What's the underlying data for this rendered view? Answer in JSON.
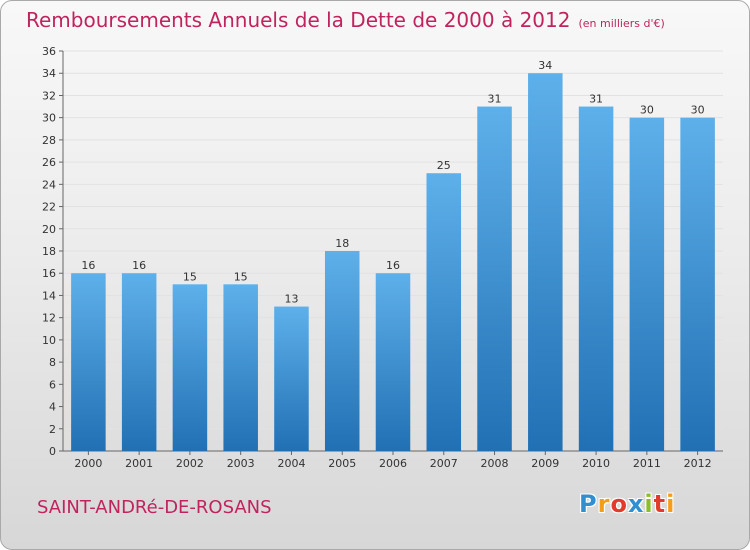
{
  "title": "Remboursements Annuels de la Dette de 2000 à 2012",
  "unit_note": "(en milliers d'€)",
  "commune": "SAINT-ANDRé-DE-ROSANS",
  "logo": {
    "letters": [
      "P",
      "r",
      "o",
      "x",
      "i",
      "t",
      "i"
    ],
    "colors": [
      "#2f8fd1",
      "#f59c1a",
      "#e23b2c",
      "#2f8fd1",
      "#8cbd2b",
      "#e23b2c",
      "#f59c1a"
    ]
  },
  "colors": {
    "bar_top": "#5eb0ea",
    "bar_bottom": "#2170b4",
    "title": "#c0245e"
  },
  "chart_data": {
    "type": "bar",
    "title": "Remboursements Annuels de la Dette de 2000 à 2012",
    "xlabel": "",
    "ylabel": "",
    "categories": [
      "2000",
      "2001",
      "2002",
      "2003",
      "2004",
      "2005",
      "2006",
      "2007",
      "2008",
      "2009",
      "2010",
      "2011",
      "2012"
    ],
    "values": [
      16,
      16,
      15,
      15,
      13,
      18,
      16,
      25,
      31,
      34,
      31,
      30,
      30
    ],
    "ylim": [
      0,
      36
    ],
    "yticks": [
      0,
      2,
      4,
      6,
      8,
      10,
      12,
      14,
      16,
      18,
      20,
      22,
      24,
      26,
      28,
      30,
      32,
      34,
      36
    ],
    "grid": true,
    "legend": "none"
  }
}
